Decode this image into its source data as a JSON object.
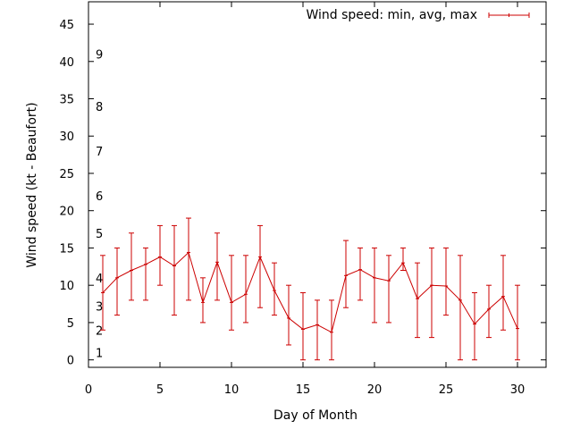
{
  "chart_data": {
    "type": "line",
    "title": "",
    "xlabel": "Day of Month",
    "ylabel": "Wind speed (kt - Beaufort)",
    "xlim": [
      0,
      32
    ],
    "ylim": [
      -1,
      48
    ],
    "xticks": [
      0,
      5,
      10,
      15,
      20,
      25,
      30
    ],
    "yticks": [
      0,
      5,
      10,
      15,
      20,
      25,
      30,
      35,
      40,
      45
    ],
    "grid": false,
    "legend_position": "top-right",
    "color": "#cc0000",
    "beaufort_labels": [
      {
        "label": "1",
        "y": 1.0
      },
      {
        "label": "2",
        "y": 4.0
      },
      {
        "label": "3",
        "y": 7.2
      },
      {
        "label": "4",
        "y": 11.0
      },
      {
        "label": "5",
        "y": 17.0
      },
      {
        "label": "6",
        "y": 22.0
      },
      {
        "label": "7",
        "y": 28.0
      },
      {
        "label": "8",
        "y": 34.0
      },
      {
        "label": "9",
        "y": 41.0
      }
    ],
    "series": [
      {
        "name": "Wind speed: min, avg, max",
        "x": [
          1,
          2,
          3,
          4,
          5,
          6,
          7,
          8,
          9,
          10,
          11,
          12,
          13,
          14,
          15,
          16,
          17,
          18,
          19,
          20,
          21,
          22,
          23,
          24,
          25,
          26,
          27,
          28,
          29,
          30
        ],
        "avg": [
          9,
          11,
          12,
          12.8,
          13.8,
          12.6,
          14.4,
          7.7,
          13.1,
          7.7,
          8.8,
          13.8,
          9.3,
          5.6,
          4.1,
          4.7,
          3.7,
          11.3,
          12.1,
          11.0,
          10.6,
          13.0,
          8.2,
          10.0,
          9.9,
          8.0,
          4.8,
          6.8,
          8.5,
          4.2
        ],
        "min": [
          4,
          6,
          8,
          8,
          10,
          6,
          8,
          5,
          8,
          4,
          5,
          7,
          6,
          2,
          0,
          0,
          0,
          7,
          8,
          5,
          5,
          12,
          3,
          3,
          6,
          0,
          0,
          3,
          4,
          0
        ],
        "max": [
          14,
          15,
          17,
          15,
          18,
          18,
          19,
          11,
          17,
          14,
          14,
          18,
          13,
          10,
          9,
          8,
          8,
          16,
          15,
          15,
          14,
          15,
          13,
          15,
          15,
          14,
          9,
          10,
          14,
          10
        ]
      }
    ]
  }
}
